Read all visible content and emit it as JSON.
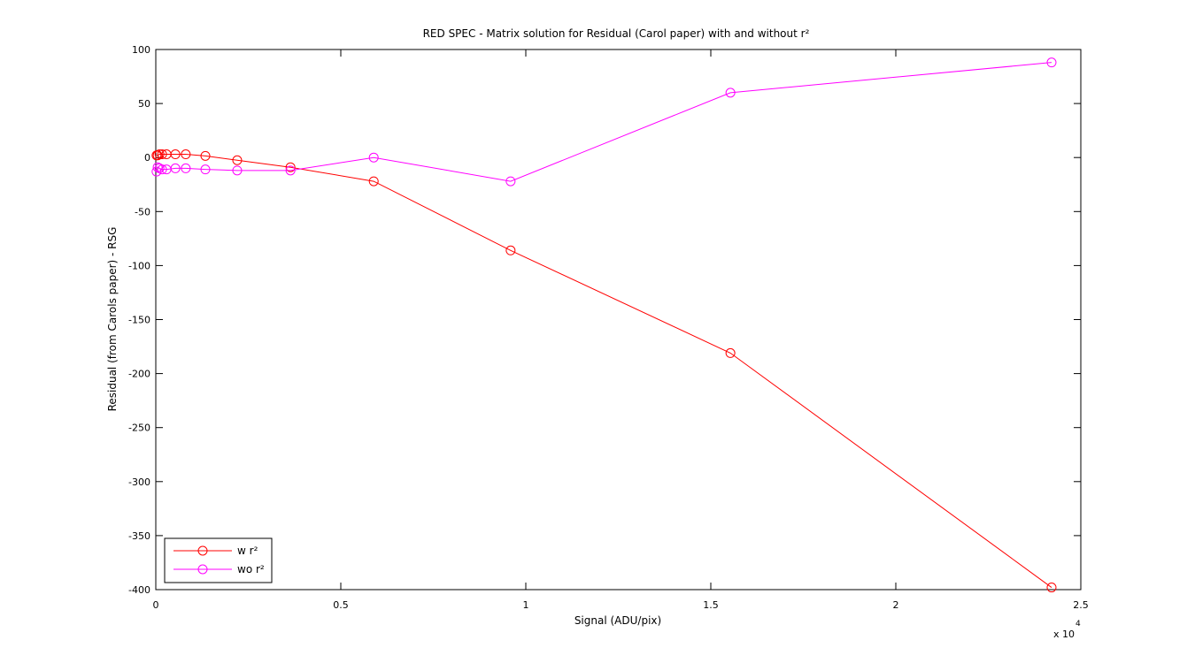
{
  "chart_data": {
    "type": "line",
    "title": "RED SPEC - Matrix solution for Residual (Carol paper) with and without r²",
    "xlabel": "Signal (ADU/pix)",
    "ylabel": "Residual (from Carols paper) - RSG",
    "x_scale_label": "x 10",
    "x_scale_exponent": "4",
    "x": [
      0.002,
      0.005,
      0.01,
      0.017,
      0.029,
      0.053,
      0.081,
      0.134,
      0.22,
      0.364,
      0.589,
      0.959,
      1.553,
      2.421
    ],
    "series": [
      {
        "name": "w r²",
        "color": "#ff0000",
        "values": [
          2,
          2,
          3,
          3,
          3,
          3,
          3,
          1.5,
          -2.5,
          -9,
          -22,
          -86,
          -181,
          -398
        ]
      },
      {
        "name": "wo r²",
        "color": "#ff00ff",
        "values": [
          -13,
          -9,
          -10,
          -11,
          -11,
          -10,
          -10,
          -11,
          -12,
          -12,
          0,
          -22,
          60,
          88
        ]
      }
    ],
    "xlim": [
      0,
      2.5
    ],
    "xticks": [
      0,
      0.5,
      1,
      1.5,
      2,
      2.5
    ],
    "ylim": [
      -400,
      100
    ],
    "yticks": [
      -400,
      -350,
      -300,
      -250,
      -200,
      -150,
      -100,
      -50,
      0,
      50,
      100
    ],
    "grid": false,
    "legend": "lower-left",
    "marker": "circle"
  }
}
